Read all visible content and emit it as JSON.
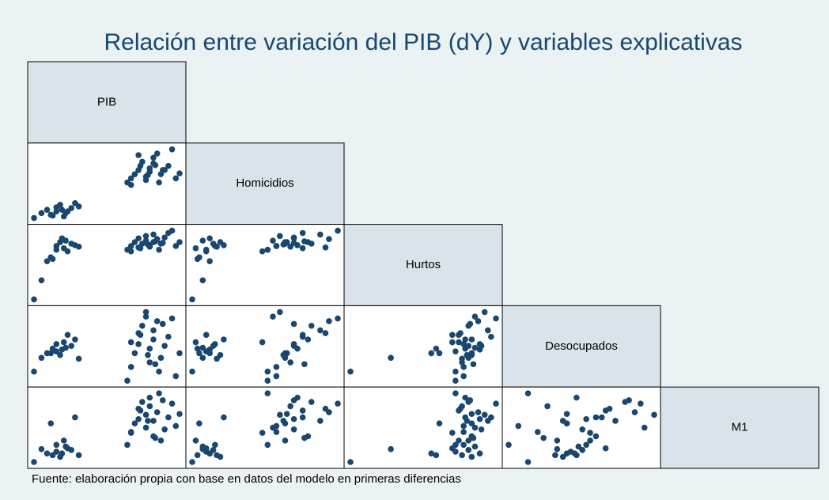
{
  "chart_data": {
    "type": "scatter_matrix",
    "title": "Relación entre variación del PIB (dY) y variables explicativas",
    "note": "Fuente: elaboración propia con base en datos del modelo en primeras diferencias",
    "color": "#1a476f",
    "variables": [
      {
        "name": "PIB",
        "values": [
          18,
          22,
          25,
          28,
          30,
          30,
          32,
          35,
          34,
          38,
          40,
          27,
          33,
          36,
          42,
          68,
          70,
          72,
          74,
          75,
          76,
          78,
          78,
          80,
          80,
          82,
          82,
          84,
          85,
          86,
          88,
          90,
          92,
          94,
          96,
          70,
          74,
          79,
          83,
          87
        ]
      },
      {
        "name": "Homicidios",
        "values": [
          12,
          18,
          22,
          15,
          20,
          25,
          28,
          18,
          14,
          24,
          30,
          16,
          22,
          20,
          26,
          55,
          60,
          65,
          70,
          75,
          80,
          58,
          62,
          68,
          72,
          78,
          85,
          90,
          55,
          65,
          70,
          75,
          95,
          60,
          66,
          52,
          88,
          64,
          76,
          70
        ]
      },
      {
        "name": "Hurtos",
        "values": [
          5,
          30,
          55,
          58,
          70,
          75,
          80,
          82,
          72,
          78,
          76,
          60,
          85,
          68,
          74,
          70,
          75,
          80,
          85,
          72,
          78,
          82,
          88,
          74,
          76,
          80,
          90,
          84,
          70,
          78,
          86,
          92,
          95,
          75,
          80,
          68,
          73,
          77,
          81,
          79
        ]
      },
      {
        "name": "Desocupados",
        "values": [
          30,
          45,
          50,
          55,
          52,
          60,
          48,
          56,
          62,
          58,
          65,
          50,
          54,
          70,
          44,
          20,
          35,
          50,
          60,
          70,
          80,
          90,
          95,
          40,
          55,
          65,
          75,
          85,
          30,
          45,
          58,
          68,
          88,
          25,
          50,
          62,
          72,
          48,
          38,
          82
        ]
      },
      {
        "name": "M1",
        "values": [
          10,
          25,
          20,
          18,
          22,
          30,
          16,
          28,
          35,
          24,
          62,
          55,
          20,
          26,
          18,
          30,
          45,
          55,
          60,
          70,
          80,
          50,
          65,
          75,
          85,
          40,
          58,
          68,
          90,
          35,
          48,
          62,
          78,
          52,
          66,
          44,
          72,
          58,
          38,
          82
        ]
      }
    ]
  }
}
